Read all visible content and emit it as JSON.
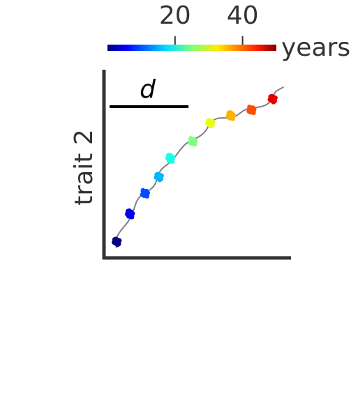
{
  "chart_data": {
    "type": "scatter",
    "xlabel": "",
    "ylabel": "trait 2",
    "annotation": "d",
    "colorbar": {
      "label": "years",
      "ticks": [
        "20",
        "40"
      ],
      "tick_values": [
        20,
        40
      ],
      "range": [
        0,
        50
      ],
      "colormap": "jet"
    },
    "trajectory_color": "#808080",
    "clusters": [
      {
        "time": 0,
        "x": 0.06,
        "y": 0.08
      },
      {
        "time": 5,
        "x": 0.13,
        "y": 0.23
      },
      {
        "time": 10,
        "x": 0.21,
        "y": 0.34
      },
      {
        "time": 15,
        "x": 0.29,
        "y": 0.43
      },
      {
        "time": 20,
        "x": 0.35,
        "y": 0.53
      },
      {
        "time": 25,
        "x": 0.47,
        "y": 0.62
      },
      {
        "time": 30,
        "x": 0.57,
        "y": 0.72
      },
      {
        "time": 35,
        "x": 0.68,
        "y": 0.76
      },
      {
        "time": 40,
        "x": 0.79,
        "y": 0.79
      },
      {
        "time": 45,
        "x": 0.91,
        "y": 0.85
      }
    ],
    "scale_bar": {
      "label": "d",
      "length": 0.43
    }
  }
}
